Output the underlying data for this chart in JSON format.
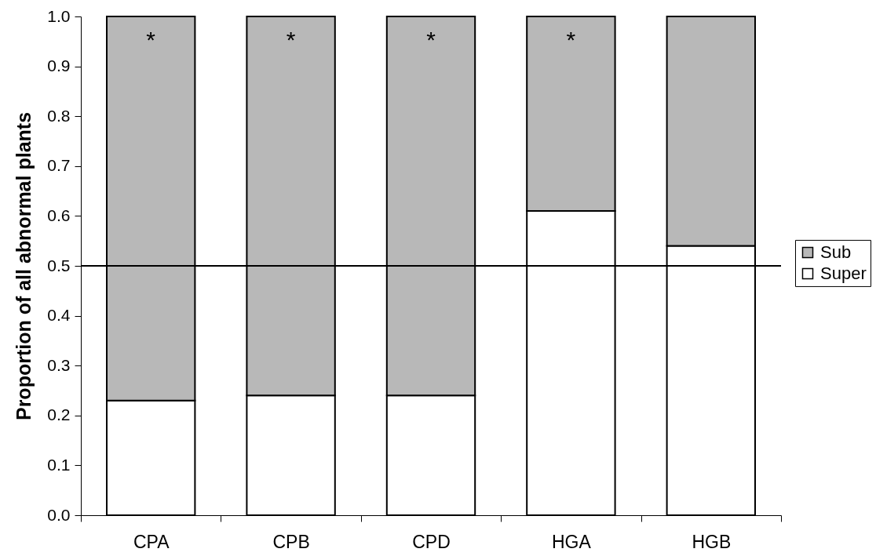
{
  "chart_data": {
    "type": "bar",
    "stacked": true,
    "categories": [
      "CPA",
      "CPB",
      "CPD",
      "HGA",
      "HGB"
    ],
    "series": [
      {
        "name": "Super",
        "color": "#ffffff",
        "values": [
          0.23,
          0.24,
          0.24,
          0.61,
          0.54
        ]
      },
      {
        "name": "Sub",
        "color": "#b8b8b8",
        "values": [
          0.77,
          0.76,
          0.76,
          0.39,
          0.46
        ]
      }
    ],
    "ylabel": "Proportion of all abnormal plants",
    "ylim": [
      0,
      1
    ],
    "yticks": [
      {
        "value": 0,
        "label": "0.0"
      },
      0.1,
      0.2,
      0.3,
      0.4,
      0.5,
      0.6,
      0.7,
      0.8,
      0.9,
      {
        "value": 1,
        "label": "1.0"
      }
    ],
    "ref_lines": [
      {
        "axis": "y",
        "value": 0.5,
        "color": "#000000"
      }
    ],
    "annotations": [
      "*",
      "*",
      "*",
      "*"
    ],
    "grid": false,
    "legend": "right"
  }
}
